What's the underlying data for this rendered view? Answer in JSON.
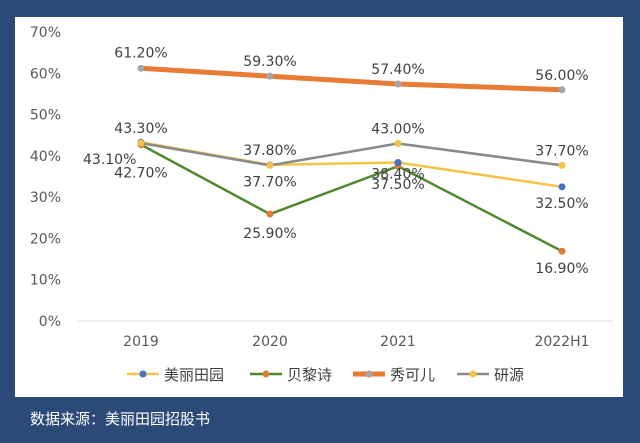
{
  "chart_data": {
    "type": "line",
    "categories": [
      "2019",
      "2020",
      "2021",
      "2022H1"
    ],
    "y_ticks": [
      "0%",
      "10%",
      "20%",
      "30%",
      "40%",
      "50%",
      "60%",
      "70%"
    ],
    "ylim": [
      0,
      70
    ],
    "series": [
      {
        "name": "美丽田园",
        "color": "#4472c4",
        "line_color": "#f6c445",
        "values": [
          43.3,
          37.8,
          38.4,
          32.5
        ],
        "labels": [
          "43.30%",
          "37.80%",
          "38.40%",
          "32.50%"
        ]
      },
      {
        "name": "贝黎诗",
        "color": "#e07a3a",
        "line_color": "#4e8a2c",
        "values": [
          42.7,
          25.9,
          37.5,
          16.9
        ],
        "labels": [
          "42.70%",
          "25.90%",
          "37.50%",
          "16.90%"
        ]
      },
      {
        "name": "秀可儿",
        "color": "#a5a5a5",
        "line_color": "#ea7b35",
        "values": [
          61.2,
          59.3,
          57.4,
          56.0
        ],
        "labels": [
          "61.20%",
          "59.30%",
          "57.40%",
          "56.00%"
        ]
      },
      {
        "name": "研源",
        "color": "#f6c445",
        "line_color": "#8a8a8a",
        "values": [
          43.1,
          37.7,
          43.0,
          37.7
        ],
        "labels": [
          "43.10%",
          "37.70%",
          "43.00%",
          "37.70%"
        ]
      }
    ]
  },
  "footer": {
    "source": "数据来源：美丽田园招股书"
  }
}
